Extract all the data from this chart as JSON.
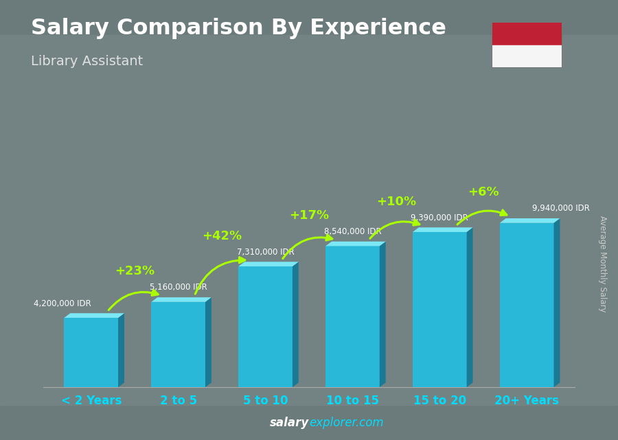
{
  "title": "Salary Comparison By Experience",
  "subtitle": "Library Assistant",
  "categories": [
    "< 2 Years",
    "2 to 5",
    "5 to 10",
    "10 to 15",
    "15 to 20",
    "20+ Years"
  ],
  "values": [
    4200000,
    5160000,
    7310000,
    8540000,
    9390000,
    9940000
  ],
  "labels": [
    "4,200,000 IDR",
    "5,160,000 IDR",
    "7,310,000 IDR",
    "8,540,000 IDR",
    "9,390,000 IDR",
    "9,940,000 IDR"
  ],
  "pct_labels": [
    "+23%",
    "+42%",
    "+17%",
    "+10%",
    "+6%"
  ],
  "bar_front": "#29b8d8",
  "bar_side": "#1a7a95",
  "bar_top": "#7de8f5",
  "bg_color": "#6b7a7a",
  "overlay_color": "#404848",
  "title_color": "#ffffff",
  "subtitle_color": "#e0e0e0",
  "label_color": "#ffffff",
  "pct_color": "#aaff00",
  "xtick_color": "#00ddff",
  "ylabel_text": "Average Monthly Salary",
  "footer_bold": "salary",
  "footer_normal": "explorer.com",
  "flag_red": "#bf2033",
  "flag_white": "#f5f5f5"
}
